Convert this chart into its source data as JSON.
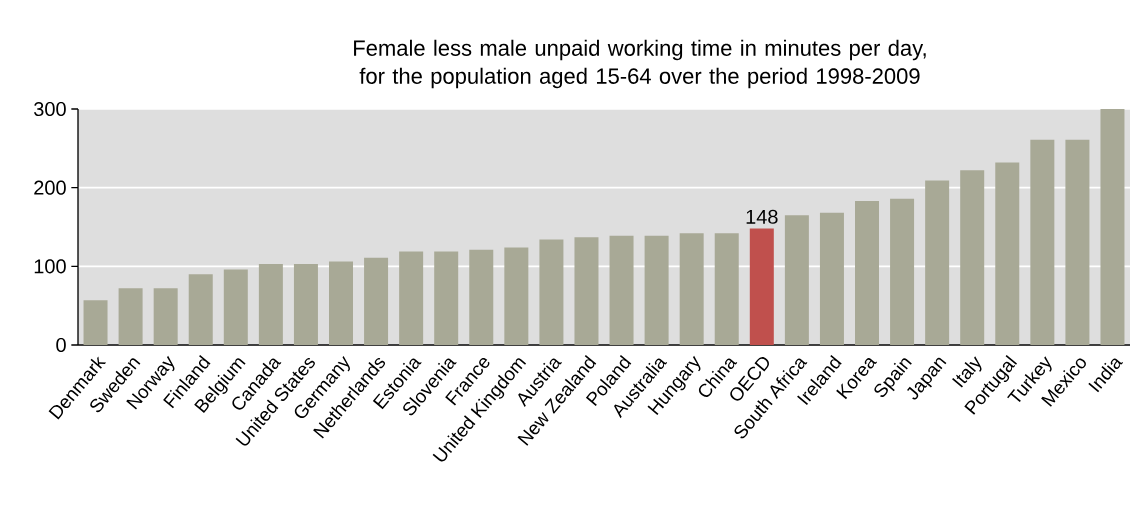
{
  "chart_data": {
    "type": "bar",
    "title": "Female less male unpaid working time in minutes per day, for the population aged 15-64 over the period 1998-2009",
    "categories": [
      "Denmark",
      "Sweden",
      "Norway",
      "Finland",
      "Belgium",
      "Canada",
      "United States",
      "Germany",
      "Netherlands",
      "Estonia",
      "Slovenia",
      "France",
      "United Kingdom",
      "Austria",
      "New Zealand",
      "Poland",
      "Australia",
      "Hungary",
      "China",
      "OECD",
      "South Africa",
      "Ireland",
      "Korea",
      "Spain",
      "Japan",
      "Italy",
      "Portugal",
      "Turkey",
      "Mexico",
      "India"
    ],
    "values": [
      57,
      72,
      72,
      90,
      96,
      103,
      103,
      106,
      111,
      119,
      119,
      121,
      124,
      134,
      137,
      139,
      139,
      142,
      142,
      148,
      165,
      168,
      183,
      186,
      209,
      222,
      232,
      261,
      261,
      300
    ],
    "colors": [
      "#a8a996",
      "#a8a996",
      "#a8a996",
      "#a8a996",
      "#a8a996",
      "#a8a996",
      "#a8a996",
      "#a8a996",
      "#a8a996",
      "#a8a996",
      "#a8a996",
      "#a8a996",
      "#a8a996",
      "#a8a996",
      "#a8a996",
      "#a8a996",
      "#a8a996",
      "#a8a996",
      "#a8a996",
      "#c0504d",
      "#a8a996",
      "#a8a996",
      "#a8a996",
      "#a8a996",
      "#a8a996",
      "#a8a996",
      "#a8a996",
      "#a8a996",
      "#a8a996",
      "#a8a996"
    ],
    "value_labels": [
      null,
      null,
      null,
      null,
      null,
      null,
      null,
      null,
      null,
      null,
      null,
      null,
      null,
      null,
      null,
      null,
      null,
      null,
      null,
      "148",
      null,
      null,
      null,
      null,
      null,
      null,
      null,
      null,
      null,
      null
    ],
    "ylim": [
      0,
      300
    ],
    "yticks": [
      0,
      100,
      200,
      300
    ],
    "grid": "y"
  }
}
